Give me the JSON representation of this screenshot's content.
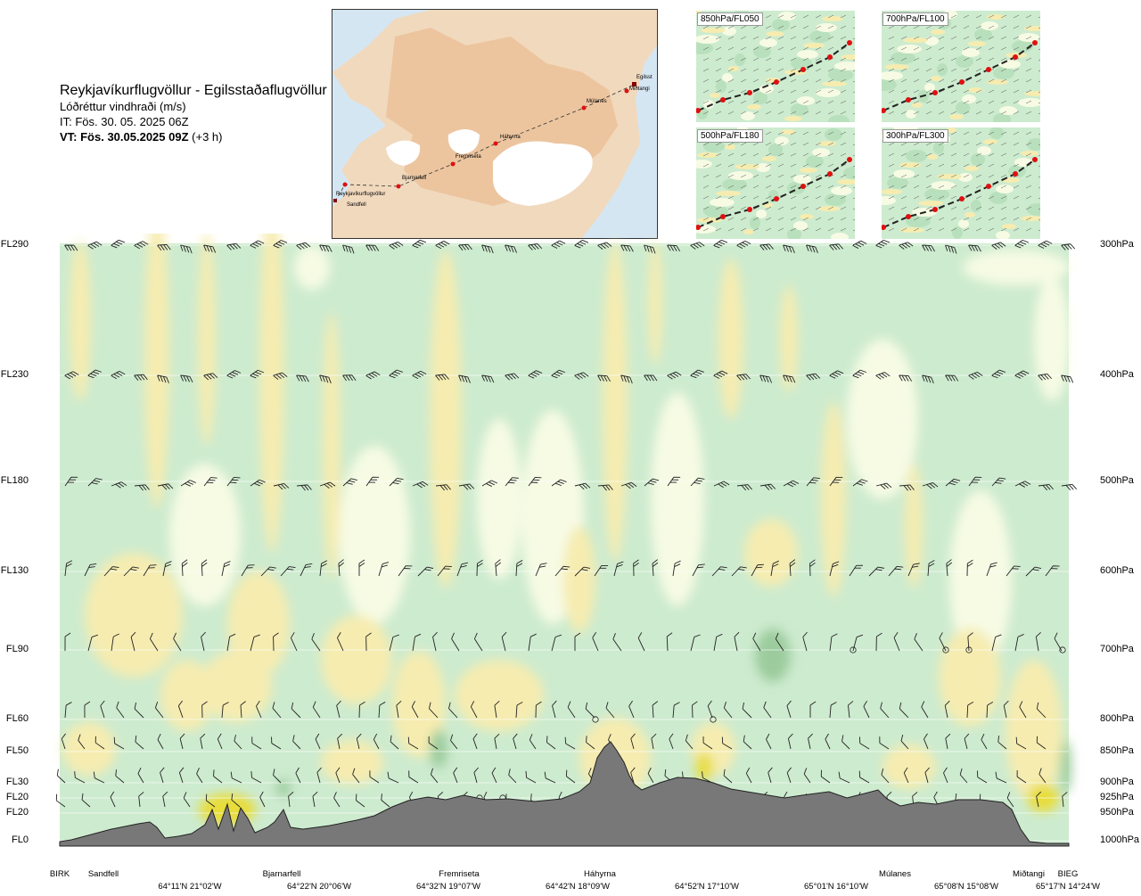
{
  "header": {
    "title": "Reykjavíkurflugvöllur - Egilsstaðaflugvöllur",
    "subtitle": "Lóðréttur vindhraði (m/s)",
    "it": "IT: Fös. 30. 05. 2025 06Z",
    "vt_bold": "VT: Fös. 30.05.2025 09Z",
    "vt_rest": " (+3 h)"
  },
  "map": {
    "points": [
      "Reykjavíkurflugvöllur",
      "Sandfell",
      "Bjarnarfell",
      "Fremriseta",
      "Háhyrna",
      "Múlanes",
      "Miðtangi",
      "Egilsst"
    ]
  },
  "insets": [
    {
      "label": "850hPa/FL050"
    },
    {
      "label": "700hPa/FL100"
    },
    {
      "label": "500hPa/FL180"
    },
    {
      "label": "300hPa/FL300"
    }
  ],
  "chart_data": {
    "type": "heatmap",
    "title": "Lóðréttur vindhraði (m/s)",
    "levels": [
      {
        "fl": "FL290",
        "hpa": "300hPa"
      },
      {
        "fl": "FL230",
        "hpa": "400hPa"
      },
      {
        "fl": "FL180",
        "hpa": "500hPa"
      },
      {
        "fl": "FL130",
        "hpa": "600hPa"
      },
      {
        "fl": "FL90",
        "hpa": "700hPa"
      },
      {
        "fl": "FL60",
        "hpa": "800hPa"
      },
      {
        "fl": "FL50",
        "hpa": "850hPa"
      },
      {
        "fl": "FL30",
        "hpa": "900hPa"
      },
      {
        "fl": "FL20",
        "hpa": "925hPa"
      },
      {
        "fl": "FL20",
        "hpa": "950hPa"
      },
      {
        "fl": "FL0",
        "hpa": "1000hPa"
      }
    ],
    "stations": [
      "BIRK",
      "Sandfell",
      "Bjarnarfell",
      "Fremriseta",
      "Háhyrna",
      "Múlanes",
      "Miðtangi",
      "BIEG"
    ],
    "coordinates": [
      "64°11'N 21°02'W",
      "64°22'N 20°06'W",
      "64°32'N 19°07'W",
      "64°42'N 18°09'W",
      "64°52'N 17°10'W",
      "65°01'N 16°10'W",
      "65°08'N 15°08'W",
      "65°17'N 14°24'W"
    ],
    "colors": {
      "green": "#cdebcf",
      "green_dark": "#9ccc9e",
      "yellow": "#f6ecb0",
      "yellow_dark": "#e8dd3a",
      "pale": "#f7fbe4",
      "terrain": "#787878"
    }
  }
}
